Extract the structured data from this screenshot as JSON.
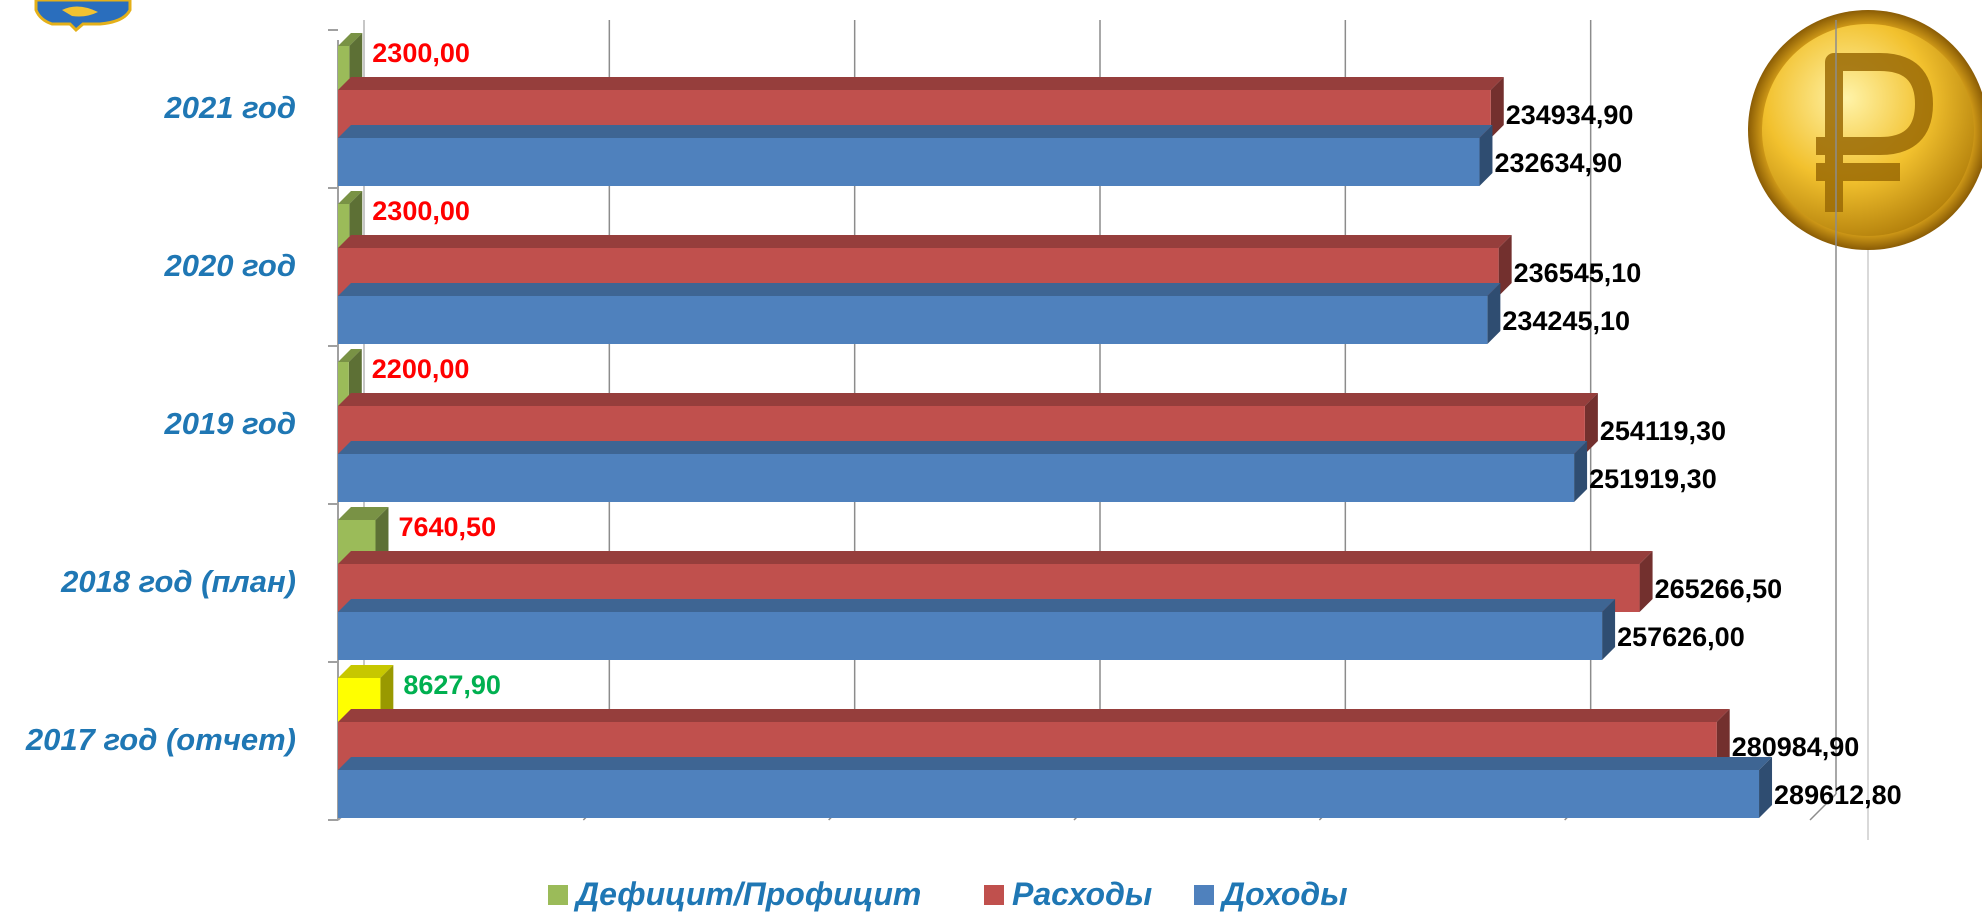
{
  "chart_data": {
    "type": "bar",
    "orientation": "horizontal",
    "three_d": true,
    "categories": [
      "2021 год",
      "2020 год",
      "2019 год",
      "2018 год  (план)",
      "2017 год (отчет)"
    ],
    "series": [
      {
        "name": "Дефицит/Профицит",
        "values": [
          2300.0,
          2300.0,
          2200.0,
          7640.5,
          8627.9
        ],
        "labels": [
          "2300,00",
          "2300,00",
          "2200,00",
          "7640,50",
          "8627,90"
        ]
      },
      {
        "name": "Расходы",
        "values": [
          234934.9,
          236545.1,
          254119.3,
          265266.5,
          280984.9
        ],
        "labels": [
          "234934,90",
          "236545,10",
          "254119,30",
          "265266,50",
          "280984,90"
        ]
      },
      {
        "name": "Доходы",
        "values": [
          232634.9,
          234245.1,
          251919.3,
          257626.0,
          289612.8
        ],
        "labels": [
          "232634,90",
          "234245,10",
          "251919,30",
          "257626,00",
          "289612,80"
        ]
      }
    ],
    "xlim": [
      0,
      300000
    ],
    "grid": true,
    "legend_position": "bottom",
    "deficit_highlight_category": "2017 год (отчет)"
  },
  "colors": {
    "deficit": "#9bbb59",
    "profit": "#ffff00",
    "expenses": "#c0504d",
    "revenues": "#4f81bd",
    "category_label": "#1f77b4",
    "deficit_label": "#ff0000",
    "profit_label": "#00b050",
    "value_label": "#000000"
  },
  "icons": {
    "logo": "coat-of-arms-icon",
    "coin": "ruble-coin-icon"
  }
}
